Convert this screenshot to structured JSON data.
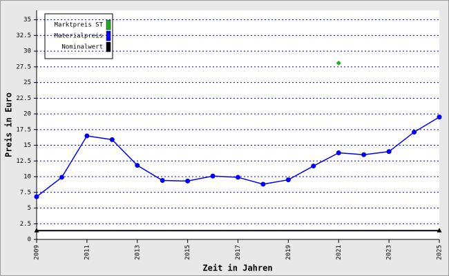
{
  "chart_data": {
    "type": "line",
    "xlabel": "Zeit in Jahren",
    "ylabel": "Preis in Euro",
    "series": [
      {
        "name": "Marktpreis ST",
        "color": "#22aa22",
        "marker": "diamond",
        "x": [
          2021
        ],
        "values": [
          28.1
        ]
      },
      {
        "name": "Materialpreis",
        "color": "#0000ee",
        "marker": "circle",
        "x": [
          2009,
          2010,
          2011,
          2012,
          2013,
          2014,
          2015,
          2016,
          2017,
          2018,
          2019,
          2020,
          2021,
          2022,
          2023,
          2024,
          2025
        ],
        "values": [
          6.8,
          9.9,
          16.5,
          15.9,
          11.8,
          9.4,
          9.3,
          10.1,
          9.9,
          8.8,
          9.5,
          11.7,
          13.8,
          13.5,
          14.0,
          17.1,
          19.5
        ]
      },
      {
        "name": "Nominalwert",
        "color": "#000000",
        "marker": "triangle",
        "x": [
          2009,
          2025
        ],
        "values": [
          1.4,
          1.4
        ]
      }
    ],
    "xlim": [
      2009,
      2025
    ],
    "xticks": [
      2009,
      2011,
      2013,
      2015,
      2017,
      2019,
      2021,
      2023,
      2025
    ],
    "ylim": [
      0,
      36.5
    ],
    "yticks": [
      0,
      2.5,
      5,
      7.5,
      10,
      12.5,
      15,
      17.5,
      20,
      22.5,
      25,
      27.5,
      30,
      32.5,
      35
    ],
    "grid": true,
    "legend": "upper left"
  }
}
